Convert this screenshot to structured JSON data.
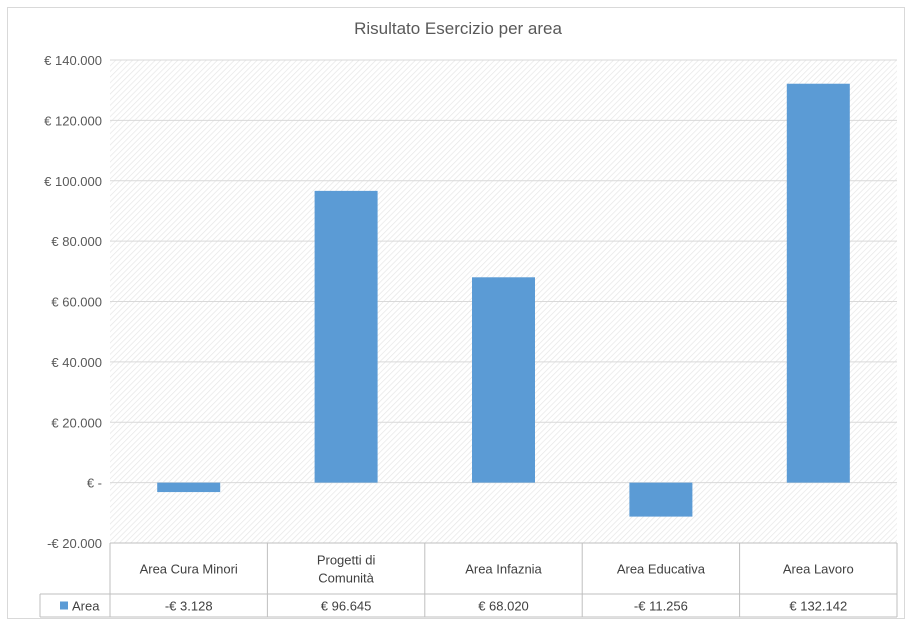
{
  "chart_data": {
    "type": "bar",
    "title": "Risultato Esercizio per area",
    "categories": [
      "Area Cura Minori",
      "Progetti di Comunità",
      "Area Infaznia",
      "Area Educativa",
      "Area Lavoro"
    ],
    "series": [
      {
        "name": "Area",
        "values": [
          -3128,
          96645,
          68020,
          -11256,
          132142
        ],
        "value_labels": [
          "-€ 3.128",
          "€ 96.645",
          "€ 68.020",
          "-€ 11.256",
          "€ 132.142"
        ]
      }
    ],
    "ylim": [
      -20000,
      140000
    ],
    "y_ticks": [
      140000,
      120000,
      100000,
      80000,
      60000,
      40000,
      20000,
      0,
      -20000
    ],
    "y_tick_labels": [
      "€ 140.000",
      "€ 120.000",
      "€ 100.000",
      "€ 80.000",
      "€ 60.000",
      "€ 40.000",
      "€ 20.000",
      "€ -",
      "-€ 20.000"
    ],
    "bar_color": "#5b9bd5",
    "grid": true,
    "data_table": true,
    "legend": "data-table"
  }
}
